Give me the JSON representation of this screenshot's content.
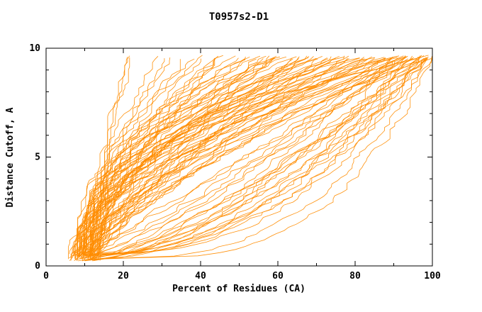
{
  "chart_data": {
    "type": "line",
    "title": "T0957s2-D1",
    "xlabel": "Percent of Residues (CA)",
    "ylabel": "Distance Cutoff, A",
    "xlim": [
      0,
      100
    ],
    "ylim": [
      0,
      10
    ],
    "x_ticks": [
      0,
      20,
      40,
      60,
      80,
      100
    ],
    "x_minor_ticks": [
      10,
      30,
      50,
      70,
      90
    ],
    "y_ticks": [
      0,
      5,
      10
    ],
    "y_minor_ticks": [
      1,
      2,
      3,
      4,
      6,
      7,
      8,
      9
    ],
    "grid": false,
    "legend": "none",
    "line_color": "#FF8C00",
    "axis_color": "#000000",
    "background": "#FFFFFF",
    "curves_format": [
      "x_at_bottom",
      "x_at_top",
      "shape_exponent",
      "seed"
    ],
    "curves": [
      [
        11,
        20,
        1.6,
        1
      ],
      [
        12,
        21,
        1.7,
        2
      ],
      [
        11.5,
        22.5,
        1.5,
        3
      ],
      [
        10,
        29,
        1.8,
        4
      ],
      [
        11,
        31,
        1.6,
        5
      ],
      [
        9,
        33,
        2.0,
        6
      ],
      [
        12,
        35.5,
        1.7,
        7
      ],
      [
        8,
        38,
        1.9,
        8
      ],
      [
        10,
        40,
        1.5,
        9
      ],
      [
        7,
        42,
        2.1,
        10
      ],
      [
        12,
        44,
        1.4,
        11
      ],
      [
        9,
        46,
        1.8,
        12
      ],
      [
        11,
        48,
        2.3,
        13
      ],
      [
        6,
        50,
        1.6,
        14
      ],
      [
        13,
        52,
        1.9,
        15
      ],
      [
        8,
        54,
        1.3,
        16
      ],
      [
        10,
        56,
        2.0,
        17
      ],
      [
        12,
        58,
        1.5,
        18
      ],
      [
        7,
        60,
        1.8,
        19
      ],
      [
        9,
        62,
        2.2,
        20
      ],
      [
        11,
        64,
        1.4,
        21
      ],
      [
        8,
        66,
        1.7,
        22
      ],
      [
        13,
        68,
        2.0,
        23
      ],
      [
        6,
        70,
        1.5,
        24
      ],
      [
        10,
        72,
        1.9,
        25
      ],
      [
        12,
        74,
        1.3,
        26
      ],
      [
        9,
        76,
        1.6,
        27
      ],
      [
        7,
        78,
        2.1,
        28
      ],
      [
        11,
        80,
        1.5,
        29
      ],
      [
        8,
        82,
        1.8,
        30
      ],
      [
        13,
        84,
        1.4,
        31
      ],
      [
        10,
        86,
        2.0,
        32
      ],
      [
        6,
        88,
        1.6,
        33
      ],
      [
        12,
        90,
        1.9,
        34
      ],
      [
        9,
        92,
        1.5,
        35
      ],
      [
        7,
        94,
        1.7,
        36
      ],
      [
        11,
        96,
        1.4,
        37
      ],
      [
        8,
        98,
        1.8,
        38
      ],
      [
        10,
        100,
        1.6,
        39
      ],
      [
        9,
        55,
        2.4,
        40
      ],
      [
        11,
        60,
        2.6,
        41
      ],
      [
        8,
        65,
        2.3,
        42
      ],
      [
        12,
        70,
        2.5,
        43
      ],
      [
        10,
        75,
        2.2,
        44
      ],
      [
        7,
        80,
        2.6,
        45
      ],
      [
        13,
        85,
        2.4,
        46
      ],
      [
        9,
        90,
        2.7,
        47
      ],
      [
        11,
        95,
        2.3,
        48
      ],
      [
        8,
        100,
        2.5,
        49
      ],
      [
        10,
        58,
        1.1,
        50
      ],
      [
        12,
        63,
        1.2,
        51
      ],
      [
        9,
        68,
        1.1,
        52
      ],
      [
        7,
        73,
        1.2,
        53
      ],
      [
        11,
        78,
        1.1,
        54
      ],
      [
        13,
        83,
        1.2,
        55
      ],
      [
        8,
        88,
        1.1,
        56
      ],
      [
        10,
        93,
        1.2,
        57
      ],
      [
        12,
        98,
        1.1,
        58
      ],
      [
        10,
        88,
        0.8,
        59
      ],
      [
        12,
        90,
        0.7,
        60
      ],
      [
        9,
        92,
        0.75,
        61
      ],
      [
        11,
        94,
        0.6,
        62
      ],
      [
        13,
        96,
        0.65,
        63
      ],
      [
        8,
        98,
        0.7,
        64
      ],
      [
        10,
        99,
        0.55,
        65
      ],
      [
        12,
        97,
        0.5,
        66
      ],
      [
        9,
        95,
        0.45,
        67
      ],
      [
        11,
        93,
        0.6,
        68
      ],
      [
        14,
        91,
        0.8,
        69
      ],
      [
        10,
        96,
        0.4,
        70
      ],
      [
        12,
        99,
        0.5,
        71
      ],
      [
        13,
        98,
        0.6,
        72
      ],
      [
        9,
        97,
        0.7,
        73
      ],
      [
        11,
        100,
        0.45,
        74
      ],
      [
        15,
        94,
        0.55,
        75
      ],
      [
        10,
        92,
        0.85,
        76
      ],
      [
        12,
        95,
        0.65,
        77
      ],
      [
        8,
        90,
        0.9,
        78
      ],
      [
        12,
        99,
        0.35,
        79
      ],
      [
        14,
        100,
        0.3,
        80
      ],
      [
        10,
        98,
        0.38,
        81
      ],
      [
        9,
        45,
        1.9,
        82
      ],
      [
        11,
        50,
        2.1,
        83
      ],
      [
        8,
        57,
        1.7,
        84
      ],
      [
        10,
        61,
        2.0,
        85
      ],
      [
        12,
        67,
        1.8,
        86
      ],
      [
        7,
        71,
        2.2,
        87
      ],
      [
        9,
        77,
        1.9,
        88
      ],
      [
        11,
        81,
        2.1,
        89
      ],
      [
        13,
        87,
        1.8,
        90
      ],
      [
        8,
        91,
        2.0,
        91
      ],
      [
        10,
        45,
        1.3,
        92
      ],
      [
        12,
        53,
        1.5,
        93
      ],
      [
        9,
        59,
        1.35,
        94
      ],
      [
        7,
        66,
        1.45,
        95
      ],
      [
        11,
        72,
        1.3,
        96
      ],
      [
        13,
        79,
        1.5,
        97
      ],
      [
        10,
        84,
        1.35,
        98
      ],
      [
        8,
        89,
        1.45,
        99
      ],
      [
        12,
        94,
        1.3,
        100
      ],
      [
        9,
        99,
        1.5,
        101
      ]
    ]
  }
}
